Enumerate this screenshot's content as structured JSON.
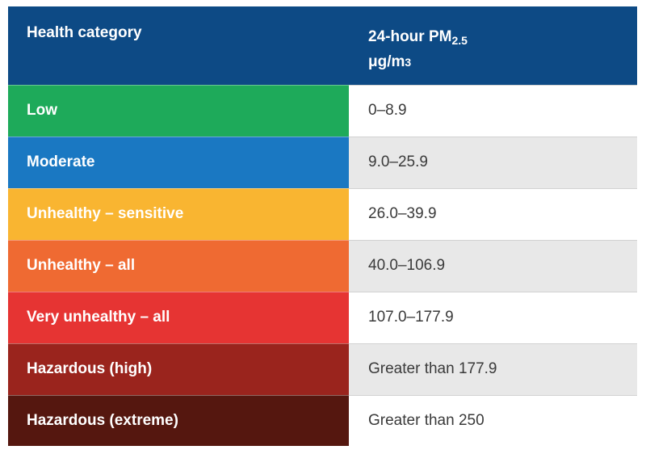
{
  "header": {
    "col1": "Health category",
    "col2_main": "24-hour PM",
    "col2_sub": "2.5",
    "col2_unit": "μg/m",
    "col2_unit_sup": "3"
  },
  "rows": [
    {
      "category": "Low",
      "value": "0–8.9",
      "color": "#1eaa5a"
    },
    {
      "category": "Moderate",
      "value": "9.0–25.9",
      "color": "#1a78c2"
    },
    {
      "category": "Unhealthy – sensitive",
      "value": "26.0–39.9",
      "color": "#f9b531"
    },
    {
      "category": "Unhealthy – all",
      "value": "40.0–106.9",
      "color": "#ef6a32"
    },
    {
      "category": "Very unhealthy – all",
      "value": "107.0–177.9",
      "color": "#e63433"
    },
    {
      "category": "Hazardous (high)",
      "value": "Greater than 177.9",
      "color": "#9a241d"
    },
    {
      "category": "Hazardous (extreme)",
      "value": "Greater than 250",
      "color": "#55170f"
    }
  ]
}
